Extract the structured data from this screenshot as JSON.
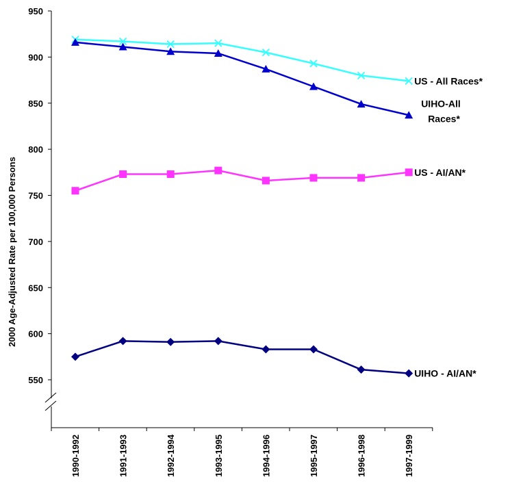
{
  "chart_data": {
    "type": "line",
    "title": "",
    "ylabel": "2000 Age-Adjusted Rate per 100,000 Persons",
    "xlabel": "",
    "ylim": [
      550,
      950
    ],
    "y_ticks": [
      550,
      600,
      650,
      700,
      750,
      800,
      850,
      900,
      950
    ],
    "y_axis_break": true,
    "categories": [
      "1990-1992",
      "1991-1993",
      "1992-1994",
      "1993-1995",
      "1994-1996",
      "1995-1997",
      "1996-1998",
      "1997-1999"
    ],
    "grid": false,
    "legend": "none",
    "series": [
      {
        "name": "US - All Races*",
        "label_lines": [
          "US - All Races*"
        ],
        "color": "#33FFFF",
        "marker": "x-mark",
        "values": [
          919,
          917,
          914,
          915,
          905,
          893,
          880,
          874
        ]
      },
      {
        "name": "UIHO-All Races*",
        "label_lines": [
          "UIHO-All",
          "Races*"
        ],
        "color": "#0000CC",
        "marker": "triangle",
        "values": [
          916,
          911,
          906,
          904,
          887,
          868,
          849,
          837
        ]
      },
      {
        "name": "US - AI/AN*",
        "label_lines": [
          "US - AI/AN*"
        ],
        "color": "#FF33FF",
        "marker": "square",
        "values": [
          755,
          773,
          773,
          777,
          766,
          769,
          769,
          775
        ]
      },
      {
        "name": "UIHO - AI/AN*",
        "label_lines": [
          "UIHO - AI/AN*"
        ],
        "color": "#000080",
        "marker": "diamond",
        "values": [
          575,
          592,
          591,
          592,
          583,
          583,
          561,
          557
        ]
      }
    ]
  }
}
